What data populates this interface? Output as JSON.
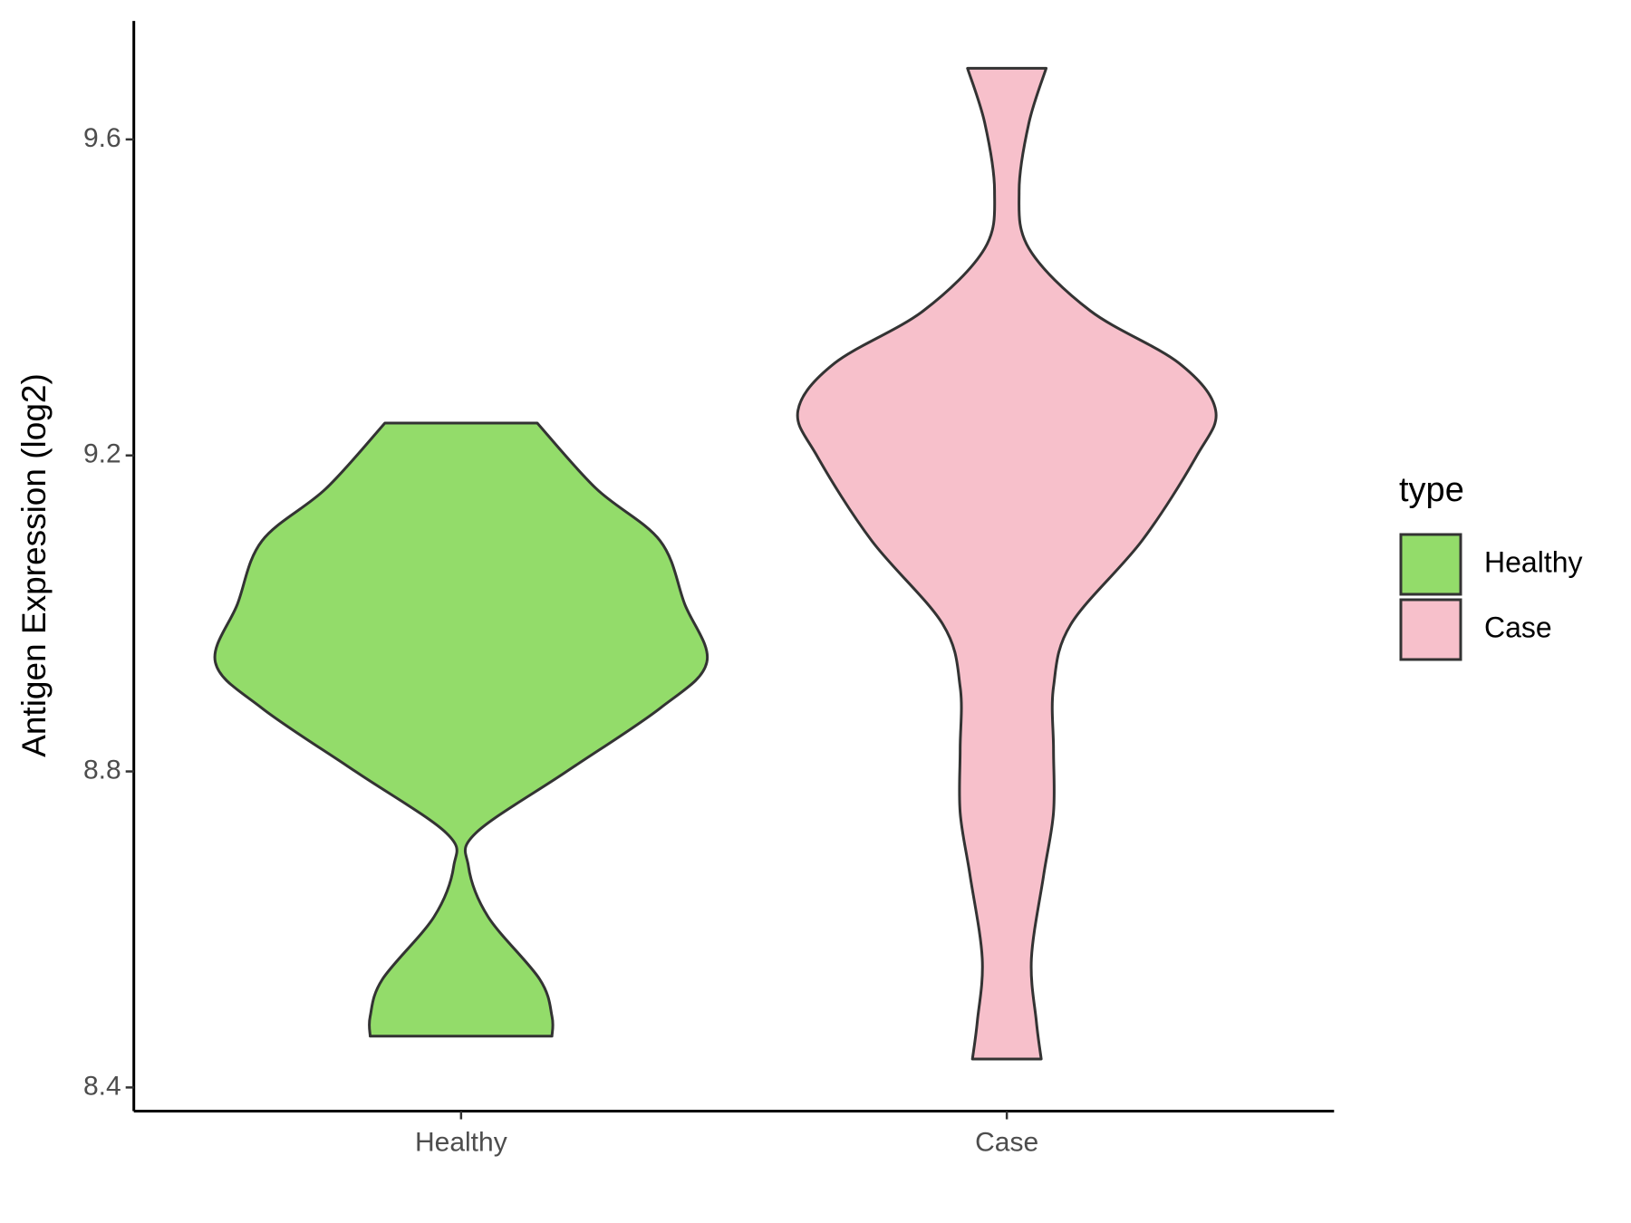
{
  "chart_data": {
    "type": "violin",
    "y_label": "Antigen Expression (log2)",
    "categories": [
      "Healthy",
      "Case"
    ],
    "legend_title": "type",
    "legend_position": "right",
    "ylim": [
      8.37,
      9.75
    ],
    "yticks": [
      8.4,
      8.8,
      9.2,
      9.6
    ],
    "grid": false,
    "series": [
      {
        "name": "Healthy",
        "color": "#93dc6a",
        "y": [
          9.241,
          9.158,
          9.092,
          9.012,
          8.938,
          8.88,
          8.8,
          8.722,
          8.68,
          8.616,
          8.537,
          8.49,
          8.465
        ],
        "density": [
          0.31,
          0.55,
          0.81,
          0.91,
          1.0,
          0.81,
          0.43,
          0.06,
          0.03,
          0.11,
          0.32,
          0.37,
          0.37
        ]
      },
      {
        "name": "Case",
        "color": "#f7c0cb",
        "y": [
          9.69,
          9.621,
          9.535,
          9.462,
          9.383,
          9.317,
          9.257,
          9.198,
          9.092,
          8.986,
          8.907,
          8.828,
          8.748,
          8.669,
          8.563,
          8.484,
          8.436
        ],
        "density": [
          0.16,
          0.09,
          0.05,
          0.09,
          0.34,
          0.7,
          0.85,
          0.77,
          0.55,
          0.26,
          0.19,
          0.19,
          0.19,
          0.15,
          0.1,
          0.12,
          0.14
        ]
      }
    ]
  }
}
